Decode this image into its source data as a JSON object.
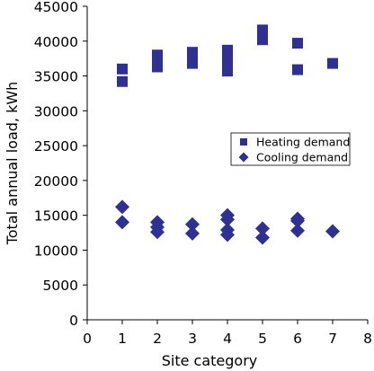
{
  "chart_data": {
    "type": "scatter",
    "xlabel": "Site category",
    "ylabel": "Total annual load, kWh",
    "xlim": [
      0,
      8
    ],
    "ylim": [
      0,
      45000
    ],
    "xticks": [
      0,
      1,
      2,
      3,
      4,
      5,
      6,
      7,
      8
    ],
    "yticks": [
      0,
      5000,
      10000,
      15000,
      20000,
      25000,
      30000,
      35000,
      40000,
      45000
    ],
    "grid": false,
    "legend_position": "right",
    "series": [
      {
        "name": "Heating demand",
        "marker": "square",
        "color": "#2E3192",
        "points": [
          [
            1,
            36000
          ],
          [
            1,
            34200
          ],
          [
            2,
            36300
          ],
          [
            2,
            37300
          ],
          [
            2,
            38000
          ],
          [
            3,
            36800
          ],
          [
            3,
            37600
          ],
          [
            3,
            38400
          ],
          [
            4,
            35700
          ],
          [
            4,
            36800
          ],
          [
            4,
            37700
          ],
          [
            4,
            38700
          ],
          [
            5,
            40200
          ],
          [
            5,
            40900
          ],
          [
            5,
            41600
          ],
          [
            6,
            39700
          ],
          [
            6,
            35900
          ],
          [
            7,
            36800
          ]
        ]
      },
      {
        "name": "Cooling demand",
        "marker": "diamond",
        "color": "#2E3192",
        "points": [
          [
            1,
            16200
          ],
          [
            1,
            14000
          ],
          [
            2,
            14000
          ],
          [
            2,
            13300
          ],
          [
            2,
            12600
          ],
          [
            3,
            13700
          ],
          [
            3,
            12400
          ],
          [
            4,
            15000
          ],
          [
            4,
            14400
          ],
          [
            4,
            12900
          ],
          [
            4,
            12200
          ],
          [
            5,
            13100
          ],
          [
            5,
            11800
          ],
          [
            6,
            14500
          ],
          [
            6,
            14200
          ],
          [
            6,
            12800
          ],
          [
            7,
            12700
          ]
        ]
      }
    ]
  }
}
